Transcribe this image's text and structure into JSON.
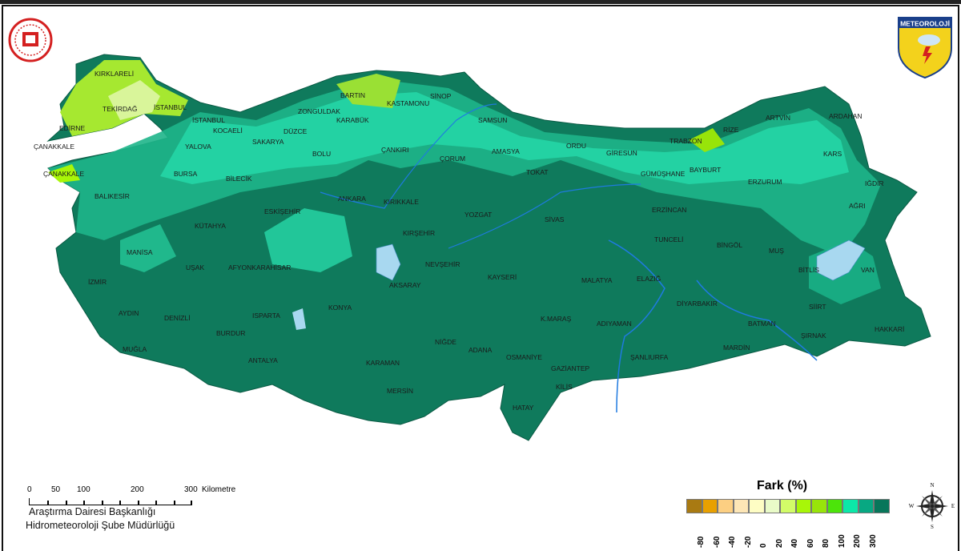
{
  "logos": {
    "left_emblem": "Tarım ve Orman Bakanlığı emblem",
    "right_shield_text": "METEOROLOJİ"
  },
  "legend": {
    "title": "Fark (%)",
    "classes": [
      {
        "label": "-80",
        "color": "#a97a12"
      },
      {
        "label": "-60",
        "color": "#e8a000"
      },
      {
        "label": "-40",
        "color": "#fccf82"
      },
      {
        "label": "-20",
        "color": "#fde6b6"
      },
      {
        "label": "0",
        "color": "#fefdc4"
      },
      {
        "label": "20",
        "color": "#e9fbc8"
      },
      {
        "label": "40",
        "color": "#d2fc68"
      },
      {
        "label": "60",
        "color": "#a8f608"
      },
      {
        "label": "80",
        "color": "#98e40a"
      },
      {
        "label": "100",
        "color": "#4ce40a"
      },
      {
        "label": "200",
        "color": "#0ce8a8"
      },
      {
        "label": "300",
        "color": "#08a882"
      },
      {
        "label": "",
        "color": "#08765a"
      }
    ]
  },
  "scale_bar": {
    "ticks": [
      "0",
      "50",
      "100",
      "200",
      "300"
    ],
    "unit": "Kilometre"
  },
  "credits": {
    "line1": "Araştırma Dairesi Başkanlığı",
    "line2": "Hidrometeoroloji Şube Müdürlüğü"
  },
  "compass": {
    "n": "N",
    "s": "S",
    "e": "E",
    "w": "W"
  },
  "cities": [
    "KIRKLARELİ",
    "TEKİRDAĞ",
    "İSTANBUL",
    "EDİRNE",
    "İSTANBUL",
    "KOCAELİ",
    "ZONGULDAK",
    "BARTIN",
    "KASTAMONU",
    "SİNOP",
    "KARABÜK",
    "DÜZCE",
    "SAKARYA",
    "YALOVA",
    "ÇANAKKALE",
    "ÇANAKKALE",
    "BURSA",
    "BOLU",
    "ÇANKIRI",
    "SAMSUN",
    "AMASYA",
    "ÇORUM",
    "ORDU",
    "GİRESUN",
    "TRABZON",
    "RİZE",
    "ARTVİN",
    "ARDAHAN",
    "KARS",
    "BİLECİK",
    "BALIKESİR",
    "ANKARA",
    "KIRIKKALE",
    "YOZGAT",
    "TOKAT",
    "SİVAS",
    "GÜMÜŞHANE",
    "BAYBURT",
    "ERZURUM",
    "IĞDIR",
    "AĞRI",
    "ESKİŞEHİR",
    "KÜTAHYA",
    "KIRŞEHİR",
    "ERZİNCAN",
    "TUNCELİ",
    "BİNGÖL",
    "MUŞ",
    "MANİSA",
    "UŞAK",
    "AFYONKARAHİSAR",
    "NEVŞEHİR",
    "KAYSERİ",
    "MALATYA",
    "ELAZIĞ",
    "BİTLİS",
    "VAN",
    "İZMİR",
    "AKSARAY",
    "DİYARBAKIR",
    "SİİRT",
    "AYDIN",
    "DENİZLİ",
    "ISPARTA",
    "KONYA",
    "NİĞDE",
    "K.MARAŞ",
    "ADIYAMAN",
    "BATMAN",
    "ŞIRNAK",
    "HAKKARİ",
    "MUĞLA",
    "BURDUR",
    "ANTALYA",
    "ADANA",
    "OSMANİYE",
    "ŞANLIURFA",
    "MARDİN",
    "KARAMAN",
    "GAZİANTEP",
    "KİLİS",
    "MERSİN",
    "HATAY"
  ]
}
